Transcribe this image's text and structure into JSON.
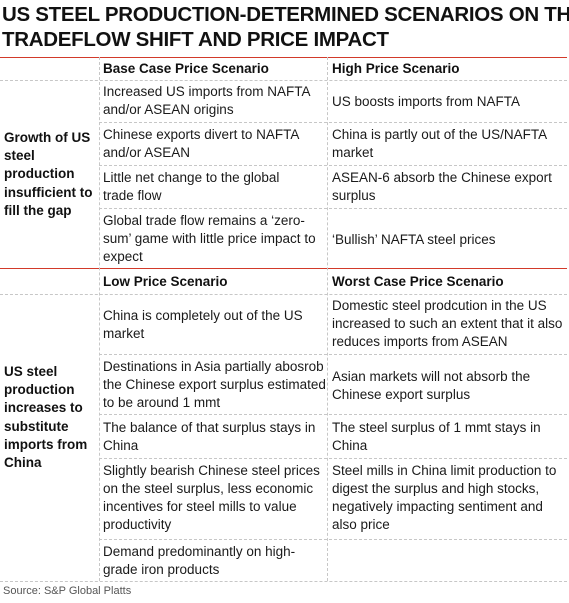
{
  "title": {
    "line1": "US STEEL PRODUCTION-DETERMINED SCENARIOS ON THE",
    "line2": "TRADEFLOW SHIFT AND PRICE IMPACT"
  },
  "section1": {
    "row_label": "Growth of US steel production insufficient to fill the gap",
    "header_base": "Base Case Price Scenario",
    "header_high": "High Price Scenario",
    "rows": [
      {
        "base": "Increased US imports from NAFTA and/or ASEAN origins",
        "high": "US boosts imports from NAFTA"
      },
      {
        "base": "Chinese exports divert to NAFTA and/or ASEAN",
        "high": "China is partly out of the US/NAFTA market"
      },
      {
        "base": "Little net change to the global trade flow",
        "high": "ASEAN-6 absorb the Chinese export surplus"
      },
      {
        "base": "Global trade flow remains a ‘zero-sum’ game with little price impact to expect",
        "high": "‘Bullish’ NAFTA steel prices"
      }
    ]
  },
  "section2": {
    "row_label": "US steel production increases to substitute imports from China",
    "header_low": "Low Price Scenario",
    "header_worst": "Worst Case Price Scenario",
    "rows": [
      {
        "low": "China is completely out of the US market",
        "worst": "Domestic steel prodcution in the US increased to such an extent that it also reduces imports from ASEAN"
      },
      {
        "low": "Destinations in Asia partially abosrob the Chinese export surplus estimated to be around 1 mmt",
        "worst": "Asian markets will not absorb the Chinese export surplus"
      },
      {
        "low": "The balance of that surplus stays in China",
        "worst": "The steel surplus of 1 mmt stays in China"
      },
      {
        "low": "Slightly bearish Chinese steel prices on the steel surplus,  less economic incentives for steel mills to value productivity",
        "worst": "Steel mills in China limit production to digest the surplus and high stocks, negatively impacting sentiment and also price"
      },
      {
        "low": "Demand predominantly on high-grade iron products",
        "worst": ""
      }
    ]
  },
  "source": "Source: S&P Global Platts",
  "colors": {
    "accent_line": "#d23a2a",
    "separator": "#c7c7c7"
  }
}
